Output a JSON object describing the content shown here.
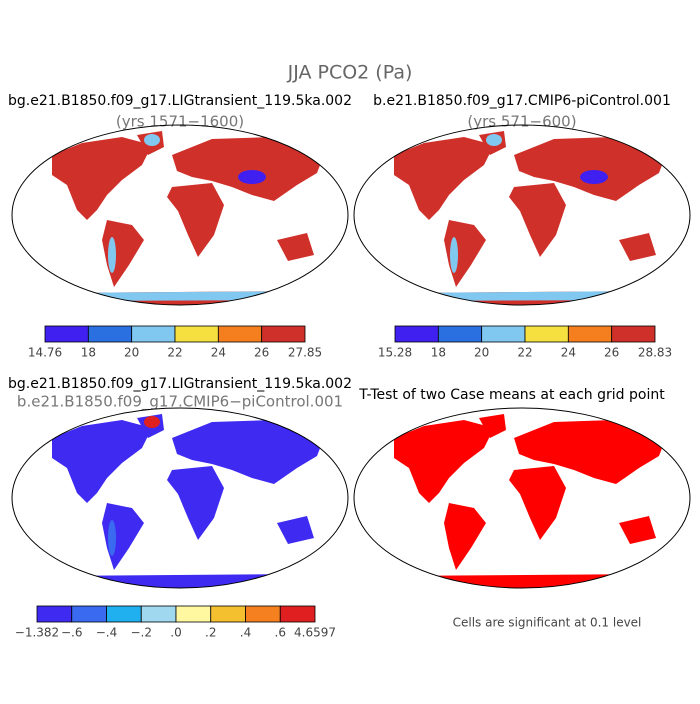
{
  "title": "JJA PCO2 (Pa)",
  "panels": [
    {
      "title": "bg.e21.B1850.f09_g17.LIGtransient_119.5ka.002",
      "subtitle": "(yrs 1571−1600)",
      "colorbar": {
        "colors": [
          "#4020f0",
          "#2a70e0",
          "#80c8f0",
          "#f5e040",
          "#f57f1e",
          "#d0302a"
        ],
        "labels": [
          "14.76",
          "18",
          "20",
          "22",
          "24",
          "26",
          "27.85"
        ]
      }
    },
    {
      "title": "b.e21.B1850.f09_g17.CMIP6-piControl.001",
      "subtitle": "(yrs 571−600)",
      "colorbar": {
        "colors": [
          "#4020f0",
          "#2a70e0",
          "#80c8f0",
          "#f5e040",
          "#f57f1e",
          "#d0302a"
        ],
        "labels": [
          "15.28",
          "18",
          "20",
          "22",
          "24",
          "26",
          "28.83"
        ]
      }
    },
    {
      "title": "bg.e21.B1850.f09_g17.LIGtransient_119.5ka.002",
      "subtitle": "b.e21.B1850.f09_g17.CMIP6−piControl.001",
      "colorbar": {
        "colors": [
          "#3f2af2",
          "#3a6af0",
          "#20b0f0",
          "#a0d8f0",
          "#fff8a0",
          "#f5c030",
          "#f58020",
          "#e02020"
        ],
        "labels": [
          "−1.382",
          "−.6",
          "−.4",
          "−.2",
          ".0",
          ".2",
          ".4",
          ".6",
          "4.6597"
        ]
      }
    },
    {
      "title": "T-Test of two Case means at each grid point",
      "note": "Cells are significant at 0.1 level"
    }
  ]
}
